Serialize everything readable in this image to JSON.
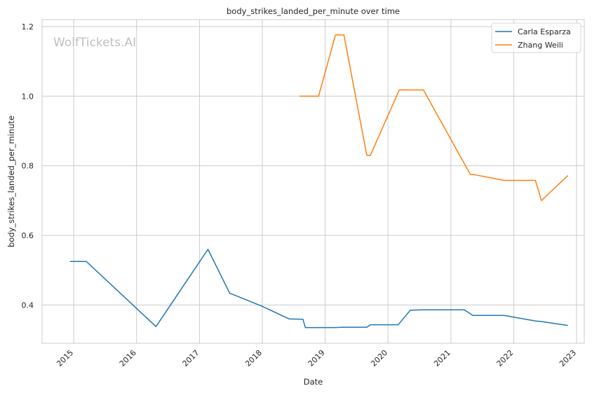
{
  "chart_data": {
    "type": "line",
    "title": "body_strikes_landed_per_minute over time",
    "xlabel": "Date",
    "ylabel": "body_strikes_landed_per_minute",
    "watermark": "WolfTickets.AI",
    "x_ticks": [
      "2015",
      "2016",
      "2017",
      "2018",
      "2019",
      "2020",
      "2021",
      "2022",
      "2023"
    ],
    "y_ticks": [
      0.4,
      0.6,
      0.8,
      1.0,
      1.2
    ],
    "xlim": [
      "2014-07-01",
      "2023-02-15"
    ],
    "ylim": [
      0.29,
      1.22
    ],
    "grid": true,
    "legend_position": "top-right",
    "series": [
      {
        "name": "Carla Esparza",
        "color": "#1f77b4",
        "points": [
          [
            "2014-12-10",
            0.525
          ],
          [
            "2015-03-15",
            0.525
          ],
          [
            "2016-04-23",
            0.338
          ],
          [
            "2017-02-19",
            0.56
          ],
          [
            "2017-06-25",
            0.434
          ],
          [
            "2018-01-01",
            0.396
          ],
          [
            "2018-06-05",
            0.36
          ],
          [
            "2018-08-25",
            0.359
          ],
          [
            "2018-09-08",
            0.335
          ],
          [
            "2019-03-02",
            0.335
          ],
          [
            "2019-04-20",
            0.336
          ],
          [
            "2019-08-31",
            0.336
          ],
          [
            "2019-09-21",
            0.343
          ],
          [
            "2020-02-29",
            0.343
          ],
          [
            "2020-05-10",
            0.385
          ],
          [
            "2020-07-25",
            0.386
          ],
          [
            "2021-03-20",
            0.386
          ],
          [
            "2021-05-08",
            0.37
          ],
          [
            "2021-11-06",
            0.37
          ],
          [
            "2022-05-07",
            0.354
          ],
          [
            "2022-06-04",
            0.353
          ],
          [
            "2022-11-12",
            0.341
          ]
        ]
      },
      {
        "name": "Zhang Weili",
        "color": "#ff7f0e",
        "points": [
          [
            "2018-08-04",
            1.0
          ],
          [
            "2018-11-24",
            1.0
          ],
          [
            "2019-03-02",
            1.176
          ],
          [
            "2019-04-20",
            1.176
          ],
          [
            "2019-08-31",
            0.83
          ],
          [
            "2019-09-21",
            0.83
          ],
          [
            "2020-03-07",
            1.018
          ],
          [
            "2020-07-25",
            1.018
          ],
          [
            "2021-04-24",
            0.775
          ],
          [
            "2021-05-22",
            0.774
          ],
          [
            "2021-11-06",
            0.758
          ],
          [
            "2022-05-07",
            0.758
          ],
          [
            "2022-06-11",
            0.7
          ],
          [
            "2022-11-12",
            0.772
          ]
        ]
      }
    ]
  }
}
